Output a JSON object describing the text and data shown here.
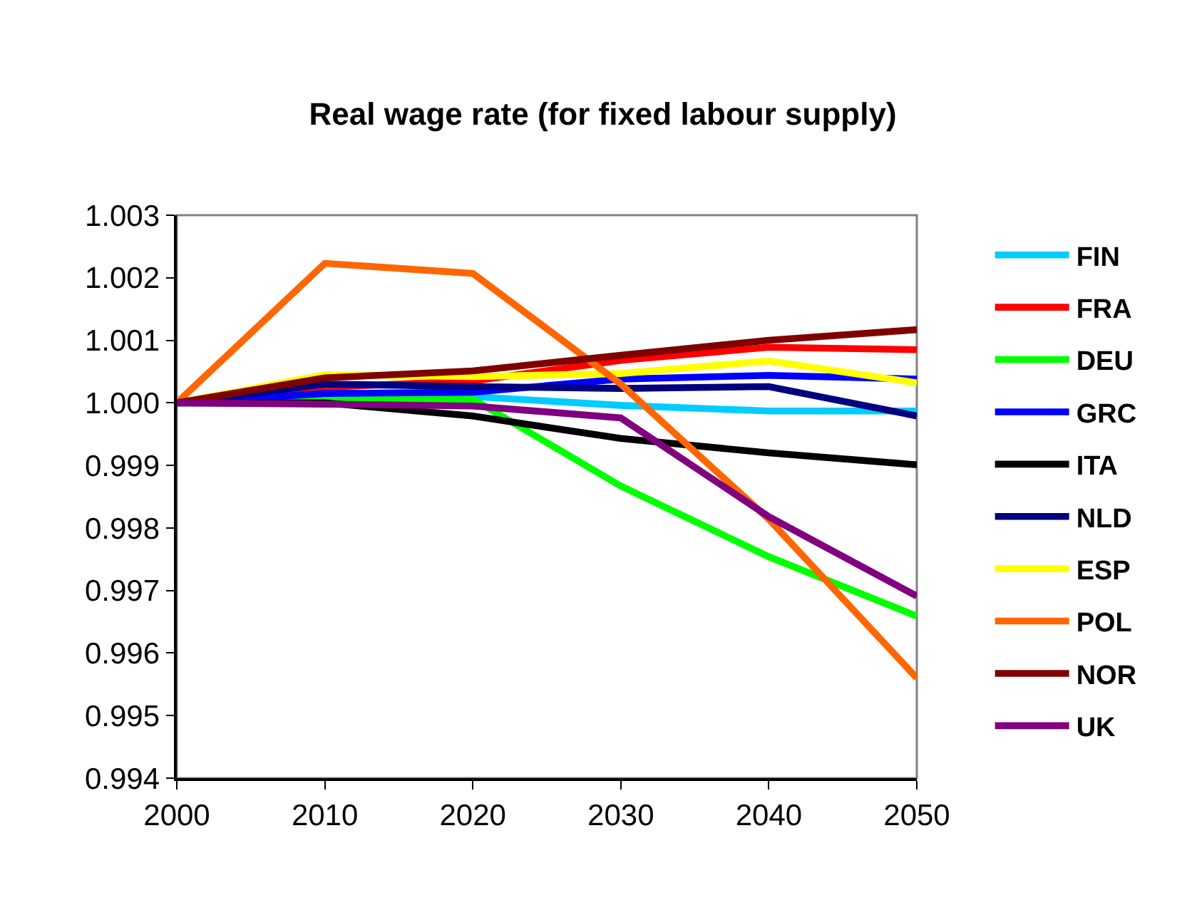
{
  "chart_data": {
    "type": "line",
    "title": "Real wage rate (for fixed labour supply)",
    "x": [
      2000,
      2010,
      2020,
      2030,
      2040,
      2050
    ],
    "xlim": [
      2000,
      2050
    ],
    "xticks": [
      2000,
      2010,
      2020,
      2030,
      2040,
      2050
    ],
    "ylim": [
      0.994,
      1.003
    ],
    "yticks": [
      0.994,
      0.995,
      0.996,
      0.997,
      0.998,
      0.999,
      {
        "value": 1,
        "label": "1.000"
      },
      1.001,
      1.002,
      1.003
    ],
    "grid": false,
    "legend": "right",
    "marker": "none",
    "line_style": "solid",
    "series": [
      {
        "name": "FIN",
        "color": "#00ccff",
        "values": [
          1.0,
          1.0001,
          1.0001,
          0.99996,
          0.99987,
          0.99987
        ]
      },
      {
        "name": "FRA",
        "color": "#ff0000",
        "values": [
          1.0,
          1.00025,
          1.00035,
          1.00068,
          1.00089,
          1.00085
        ]
      },
      {
        "name": "DEU",
        "color": "#00ff00",
        "values": [
          1.0,
          1.00005,
          1.00006,
          0.99867,
          0.99754,
          0.99659
        ]
      },
      {
        "name": "GRC",
        "color": "#0000ff",
        "values": [
          1.0,
          1.00015,
          1.00017,
          1.00038,
          1.00044,
          1.00038
        ]
      },
      {
        "name": "ITA",
        "color": "#000000",
        "values": [
          1.0,
          1.0,
          0.99979,
          0.99943,
          0.9992,
          0.99901
        ]
      },
      {
        "name": "NLD",
        "color": "#000080",
        "values": [
          1.0,
          1.0003,
          1.00026,
          1.00023,
          1.00026,
          0.99979
        ]
      },
      {
        "name": "ESP",
        "color": "#ffff00",
        "values": [
          1.0,
          1.00045,
          1.00042,
          1.00047,
          1.00067,
          1.00032
        ]
      },
      {
        "name": "POL",
        "color": "#ff6600",
        "values": [
          1.0,
          1.00223,
          1.00207,
          1.0003,
          0.99814,
          0.9956
        ]
      },
      {
        "name": "NOR",
        "color": "#800000",
        "values": [
          1.0,
          1.0004,
          1.00051,
          1.00076,
          1.001,
          1.00117
        ]
      },
      {
        "name": "UK",
        "color": "#800080",
        "values": [
          1.0,
          0.99998,
          0.99995,
          0.99976,
          0.99818,
          0.99691
        ]
      }
    ]
  }
}
